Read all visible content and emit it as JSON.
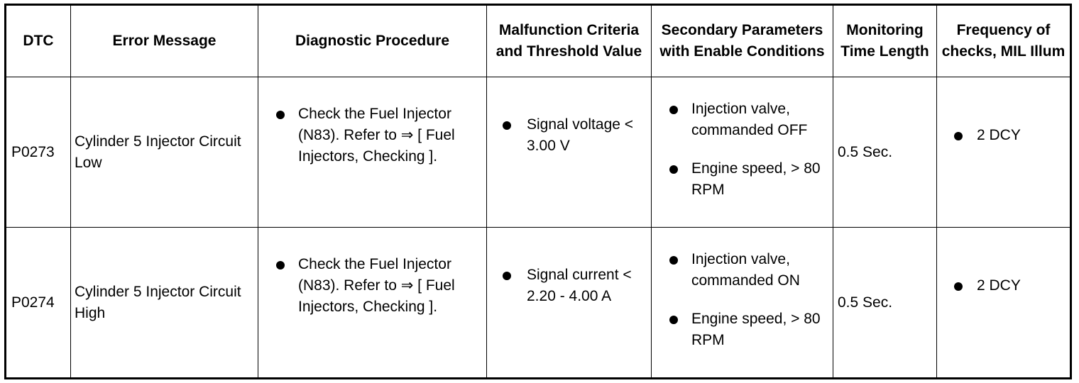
{
  "table": {
    "headers": [
      "DTC",
      "Error Message",
      "Diagnostic Procedure",
      "Malfunction Criteria and Threshold Value",
      "Secondary Parameters with Enable Conditions",
      "Monitoring Time Length",
      "Frequency of checks, MIL Illum"
    ],
    "rows": [
      {
        "dtc": "P0273",
        "error_message": "Cylinder 5 Injector Circuit Low",
        "diagnostic_procedure": "Check the Fuel Injector (N83). Refer to ⇒ [ Fuel Injectors, Checking ].",
        "malfunction_criteria": "Signal voltage < 3.00 V",
        "secondary_parameters": [
          "Injection valve, commanded OFF",
          "Engine speed, > 80 RPM"
        ],
        "monitoring_time": "0.5 Sec.",
        "frequency": "2 DCY"
      },
      {
        "dtc": "P0274",
        "error_message": "Cylinder 5 Injector Circuit High",
        "diagnostic_procedure": "Check the Fuel Injector (N83). Refer to ⇒ [ Fuel Injectors, Checking ].",
        "malfunction_criteria": "Signal current < 2.20 - 4.00 A",
        "secondary_parameters": [
          "Injection valve, commanded ON",
          "Engine speed, > 80 RPM"
        ],
        "monitoring_time": "0.5 Sec.",
        "frequency": "2 DCY"
      }
    ]
  }
}
